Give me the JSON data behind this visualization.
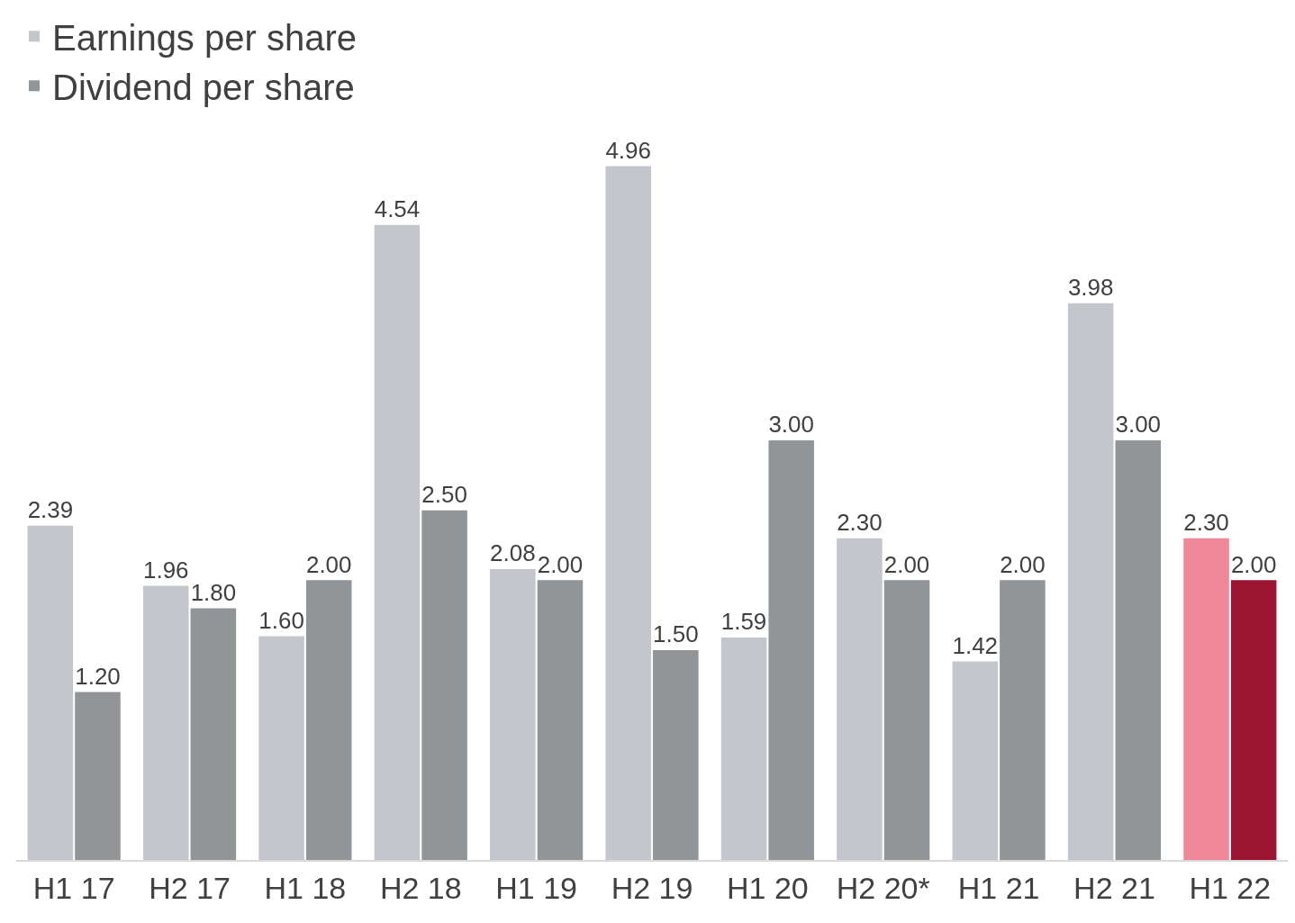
{
  "chart_data": {
    "type": "bar",
    "categories": [
      "H1 17",
      "H2 17",
      "H1 18",
      "H2 18",
      "H1 19",
      "H2 19",
      "H1 20",
      "H2 20*",
      "H1 21",
      "H2 21",
      "H1 22"
    ],
    "series": [
      {
        "name": "Earnings per share",
        "color": "#c3c7cb",
        "colors": [
          null,
          null,
          null,
          null,
          null,
          null,
          null,
          null,
          null,
          null,
          "#ee8898"
        ],
        "values": [
          2.39,
          1.96,
          1.6,
          4.54,
          2.08,
          4.96,
          1.59,
          2.3,
          1.42,
          3.98,
          2.3
        ],
        "value_labels": [
          "2.39",
          "1.96",
          "1.60",
          "4.54",
          "2.08",
          "4.96",
          "1.59",
          "2.30",
          "1.42",
          "3.98",
          "2.30"
        ]
      },
      {
        "name": "Dividend per share",
        "color": "#919598",
        "colors": [
          null,
          null,
          null,
          null,
          null,
          null,
          null,
          null,
          null,
          null,
          "#9b1530"
        ],
        "values": [
          1.2,
          1.8,
          2.0,
          2.5,
          2.0,
          1.5,
          3.0,
          2.0,
          2.0,
          3.0,
          2.0
        ],
        "value_labels": [
          "1.20",
          "1.80",
          "2.00",
          "2.50",
          "2.00",
          "1.50",
          "3.00",
          "2.00",
          "2.00",
          "3.00",
          "2.00"
        ]
      }
    ],
    "legend": "top left",
    "grid": false,
    "tick_labels": "x"
  }
}
